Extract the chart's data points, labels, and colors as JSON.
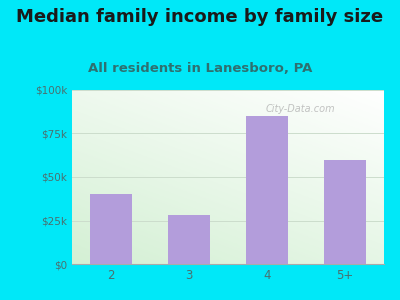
{
  "title": "Median family income by family size",
  "subtitle": "All residents in Lanesboro, PA",
  "categories": [
    "2",
    "3",
    "4",
    "5+"
  ],
  "values": [
    40000,
    28000,
    85000,
    60000
  ],
  "bar_color": "#b39ddb",
  "title_fontsize": 13,
  "subtitle_fontsize": 9.5,
  "title_color": "#1a1a1a",
  "subtitle_color": "#2e7070",
  "tick_label_color": "#4a7070",
  "background_outer": "#00e8f8",
  "ylim": [
    0,
    100000
  ],
  "yticks": [
    0,
    25000,
    50000,
    75000,
    100000
  ],
  "ytick_labels": [
    "$0",
    "$25k",
    "$50k",
    "$75k",
    "$100k"
  ],
  "watermark": "City-Data.com"
}
